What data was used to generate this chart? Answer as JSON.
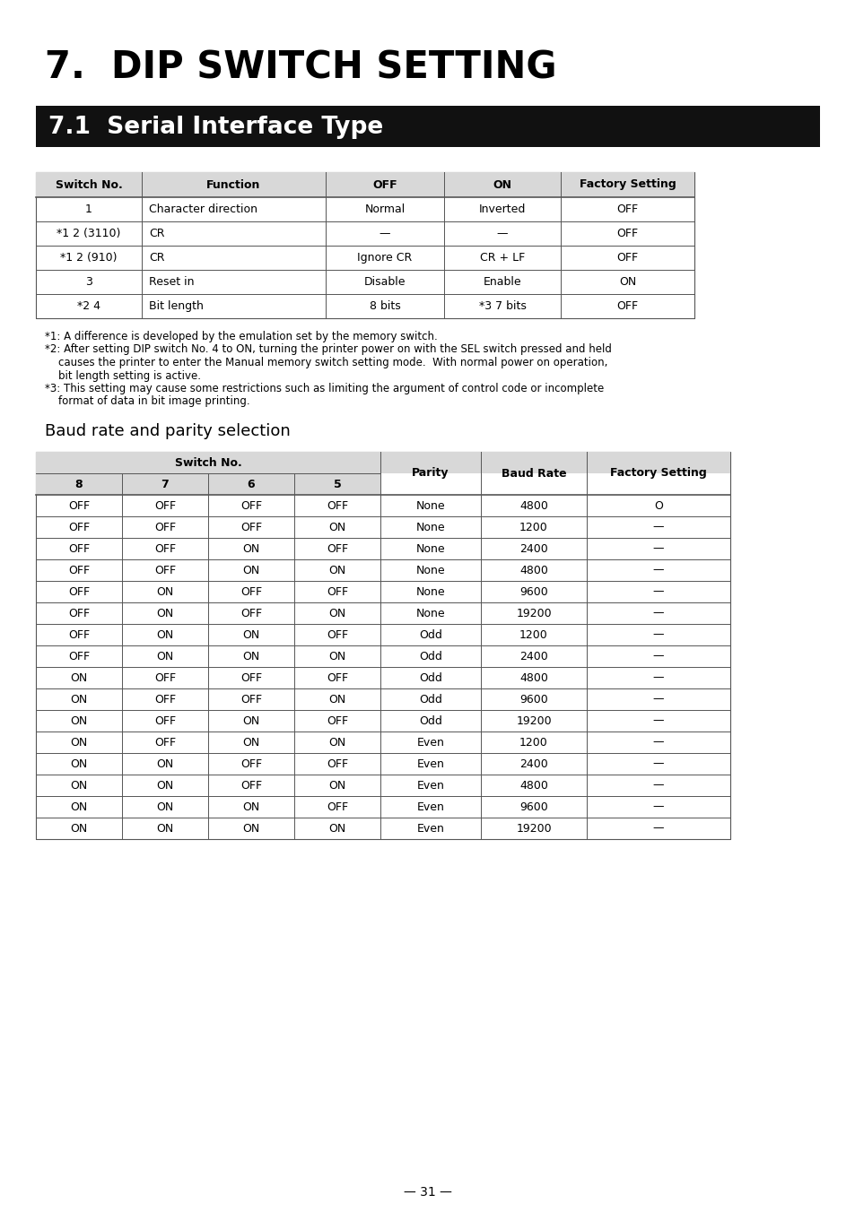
{
  "title": "7.  DIP SWITCH SETTING",
  "section_title": "7.1  Serial Interface Type",
  "bg_color": "#ffffff",
  "section_bg": "#111111",
  "section_fg": "#ffffff",
  "table1_headers": [
    "Switch No.",
    "Function",
    "OFF",
    "ON",
    "Factory Setting"
  ],
  "table1_rows": [
    [
      "1",
      "Character direction",
      "Normal",
      "Inverted",
      "OFF"
    ],
    [
      "*1 2 (3110)",
      "CR",
      "—",
      "—",
      "OFF"
    ],
    [
      "*1 2 (910)",
      "CR",
      "Ignore CR",
      "CR + LF",
      "OFF"
    ],
    [
      "3",
      "Reset in",
      "Disable",
      "Enable",
      "ON"
    ],
    [
      "*2 4",
      "Bit length",
      "8 bits",
      "*3 7 bits",
      "OFF"
    ]
  ],
  "footnote1": "*1: A difference is developed by the emulation set by the memory switch.",
  "footnote2a": "*2: After setting DIP switch No. 4 to ON, turning the printer power on with the SEL switch pressed and held",
  "footnote2b": "    causes the printer to enter the Manual memory switch setting mode.  With normal power on operation,",
  "footnote2c": "    bit length setting is active.",
  "footnote3a": "*3: This setting may cause some restrictions such as limiting the argument of control code or incomplete",
  "footnote3b": "    format of data in bit image printing.",
  "baud_title": "Baud rate and parity selection",
  "baud_rows": [
    [
      "OFF",
      "OFF",
      "OFF",
      "OFF",
      "None",
      "4800",
      "O"
    ],
    [
      "OFF",
      "OFF",
      "OFF",
      "ON",
      "None",
      "1200",
      "—"
    ],
    [
      "OFF",
      "OFF",
      "ON",
      "OFF",
      "None",
      "2400",
      "—"
    ],
    [
      "OFF",
      "OFF",
      "ON",
      "ON",
      "None",
      "4800",
      "—"
    ],
    [
      "OFF",
      "ON",
      "OFF",
      "OFF",
      "None",
      "9600",
      "—"
    ],
    [
      "OFF",
      "ON",
      "OFF",
      "ON",
      "None",
      "19200",
      "—"
    ],
    [
      "OFF",
      "ON",
      "ON",
      "OFF",
      "Odd",
      "1200",
      "—"
    ],
    [
      "OFF",
      "ON",
      "ON",
      "ON",
      "Odd",
      "2400",
      "—"
    ],
    [
      "ON",
      "OFF",
      "OFF",
      "OFF",
      "Odd",
      "4800",
      "—"
    ],
    [
      "ON",
      "OFF",
      "OFF",
      "ON",
      "Odd",
      "9600",
      "—"
    ],
    [
      "ON",
      "OFF",
      "ON",
      "OFF",
      "Odd",
      "19200",
      "—"
    ],
    [
      "ON",
      "OFF",
      "ON",
      "ON",
      "Even",
      "1200",
      "—"
    ],
    [
      "ON",
      "ON",
      "OFF",
      "OFF",
      "Even",
      "2400",
      "—"
    ],
    [
      "ON",
      "ON",
      "OFF",
      "ON",
      "Even",
      "4800",
      "—"
    ],
    [
      "ON",
      "ON",
      "ON",
      "OFF",
      "Even",
      "9600",
      "—"
    ],
    [
      "ON",
      "ON",
      "ON",
      "ON",
      "Even",
      "19200",
      "—"
    ]
  ],
  "page_number": "— 31 —"
}
